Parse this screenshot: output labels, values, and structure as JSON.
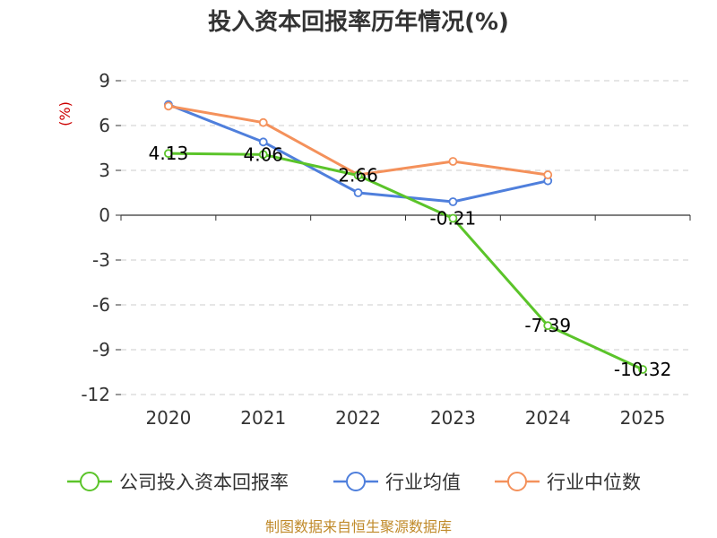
{
  "chart_data": {
    "type": "line",
    "title": "投入资本回报率历年情况(%)",
    "ylabel": "(%)",
    "xlabel": "",
    "categories": [
      "2020",
      "2021",
      "2022",
      "2023",
      "2024",
      "2025"
    ],
    "yticks": [
      9,
      6,
      3,
      0,
      -3,
      -6,
      -9,
      -12
    ],
    "ylim": [
      -12,
      9
    ],
    "grid": true,
    "legend_position": "bottom",
    "series": [
      {
        "name": "公司投入资本回报率",
        "color": "#5bc42a",
        "values": [
          4.13,
          4.06,
          2.66,
          -0.21,
          -7.39,
          -10.32
        ],
        "labels": [
          "4.13",
          "4.06",
          "2.66",
          "-0.21",
          "-7.39",
          "-10.32"
        ]
      },
      {
        "name": "行业均值",
        "color": "#4f7fdc",
        "values": [
          7.4,
          4.9,
          1.5,
          0.9,
          2.3,
          null
        ]
      },
      {
        "name": "行业中位数",
        "color": "#f4915b",
        "values": [
          7.3,
          6.2,
          2.7,
          3.6,
          2.7,
          null
        ]
      }
    ],
    "source": "制图数据来自恒生聚源数据库"
  }
}
